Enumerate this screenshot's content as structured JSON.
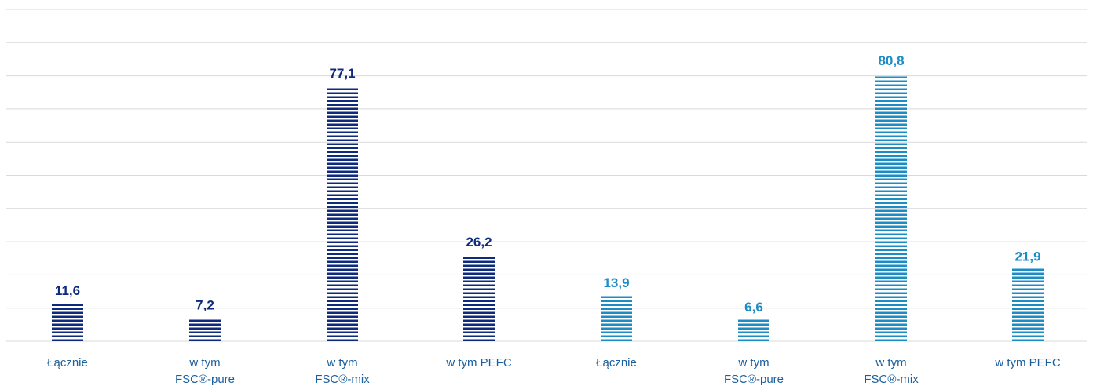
{
  "chart_data": {
    "type": "bar",
    "categories": [
      [
        "Łącznie"
      ],
      [
        "w tym",
        "FSC®-pure"
      ],
      [
        "w tym",
        "FSC®-mix"
      ],
      [
        "w tym PEFC"
      ],
      [
        "Łącznie"
      ],
      [
        "w tym",
        "FSC®-pure"
      ],
      [
        "w tym",
        "FSC®-mix"
      ],
      [
        "w tym PEFC"
      ]
    ],
    "values": [
      11.6,
      7.2,
      77.1,
      26.2,
      13.9,
      6.6,
      80.8,
      21.9
    ],
    "value_labels": [
      "11,6",
      "7,2",
      "77,1",
      "26,2",
      "13,9",
      "6,6",
      "80,8",
      "21,9"
    ],
    "groups": [
      {
        "color": "#0d2a7d",
        "indices": [
          0,
          1,
          2,
          3
        ]
      },
      {
        "color": "#1b8cc4",
        "indices": [
          4,
          5,
          6,
          7
        ]
      }
    ],
    "ylim": [
      0,
      100
    ],
    "grid": true,
    "legend": "none",
    "colors": {
      "dark": "#0d2a7d",
      "light": "#1b8cc4",
      "grid": "#d9d9d9",
      "category_text": "#1a5f9e"
    }
  }
}
